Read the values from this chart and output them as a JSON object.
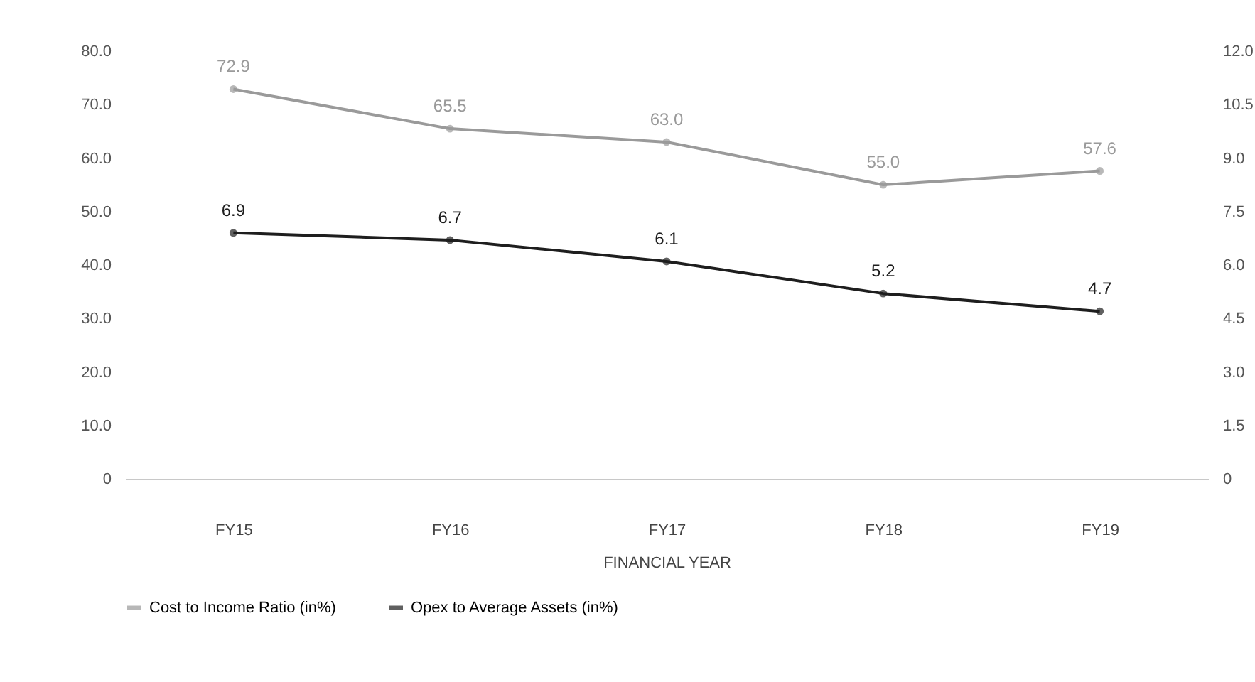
{
  "chart_data": {
    "type": "line",
    "xlabel": "FINANCIAL YEAR",
    "categories": [
      "FY15",
      "FY16",
      "FY17",
      "FY18",
      "FY19"
    ],
    "series": [
      {
        "name": "Cost to Income Ratio (in%)",
        "color": "#9a9a9a",
        "values": [
          72.9,
          65.5,
          63.0,
          55.0,
          57.6
        ],
        "value_labels": [
          "72.9",
          "65.5",
          "63.0",
          "55.0",
          "57.6"
        ]
      },
      {
        "name": "Opex to Average Assets (in%)",
        "color": "#1e1e1e",
        "axis": "y2",
        "values": [
          6.9,
          6.7,
          6.1,
          5.2,
          4.7
        ],
        "value_labels": [
          "6.9",
          "6.7",
          "6.1",
          "5.2",
          "4.7"
        ]
      }
    ],
    "ylim": [
      0,
      80
    ],
    "yticks": [
      0,
      {
        "value": 10,
        "label": "10.0"
      },
      {
        "value": 20,
        "label": "20.0"
      },
      {
        "value": 30,
        "label": "30.0"
      },
      {
        "value": 40,
        "label": "40.0"
      },
      {
        "value": 50,
        "label": "50.0"
      },
      {
        "value": 60,
        "label": "60.0"
      },
      {
        "value": 70,
        "label": "70.0"
      },
      {
        "value": 80,
        "label": "80.0"
      }
    ],
    "y2lim": [
      0,
      12
    ],
    "y2ticks": [
      0,
      1.5,
      {
        "value": 3,
        "label": "3.0"
      },
      4.5,
      {
        "value": 6,
        "label": "6.0"
      },
      7.5,
      {
        "value": 9,
        "label": "9.0"
      },
      10.5,
      {
        "value": 12,
        "label": "12.0"
      }
    ],
    "marker": "circle",
    "line_style": "solid",
    "grid": false,
    "legend": "bottom"
  }
}
